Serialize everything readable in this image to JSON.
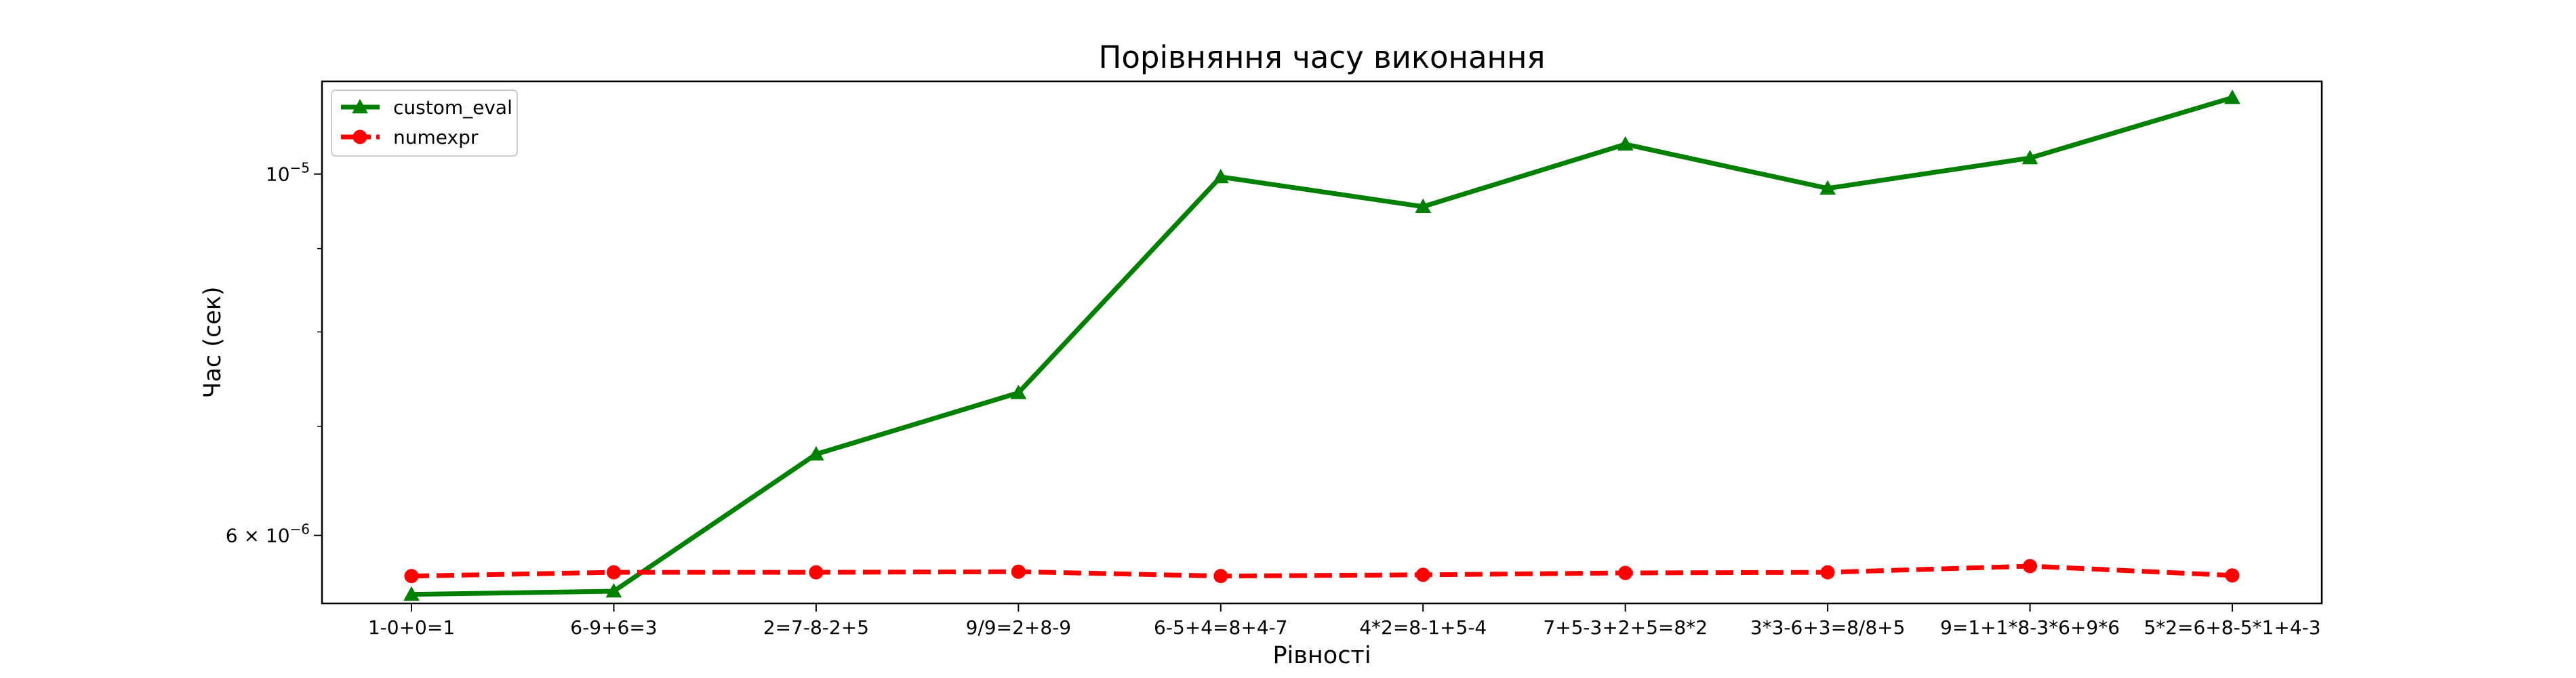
{
  "chart_data": {
    "type": "line",
    "title": "Порівняння часу виконання",
    "xlabel": "Рівності",
    "ylabel": "Час (сек)",
    "y_scale": "log",
    "ylim": [
      5.45e-06,
      1.14e-05
    ],
    "categories": [
      "1-0+0=1",
      "6-9+6=3",
      "2=7-8-2+5",
      "9/9=2+8-9",
      "6-5+4=8+4-7",
      "4*2=8-1+5-4",
      "7+5-3+2+5=8*2",
      "3*3-6+3=8/8+5",
      "9=1+1*8-3*6+9*6",
      "5*2=6+8-5*1+4-3"
    ],
    "series": [
      {
        "name": "custom_eval",
        "color": "#008000",
        "line_style": "solid",
        "marker": "triangle",
        "values": [
          5.52e-06,
          5.545e-06,
          6.73e-06,
          7.34e-06,
          9.96e-06,
          9.55e-06,
          1.043e-05,
          9.8e-06,
          1.023e-05,
          1.114e-05
        ]
      },
      {
        "name": "numexpr",
        "color": "#ff0000",
        "line_style": "dashed",
        "marker": "circle",
        "values": [
          5.665e-06,
          5.695e-06,
          5.695e-06,
          5.7e-06,
          5.665e-06,
          5.675e-06,
          5.69e-06,
          5.695e-06,
          5.745e-06,
          5.67e-06
        ]
      }
    ],
    "y_tick_labels": [
      {
        "value": 1e-05,
        "mantissa": "",
        "base": "10",
        "exponent": "−5"
      },
      {
        "value": 6e-06,
        "mantissa": "6 × ",
        "base": "10",
        "exponent": "−6"
      }
    ],
    "grid": false,
    "legend_position": "upper left"
  }
}
